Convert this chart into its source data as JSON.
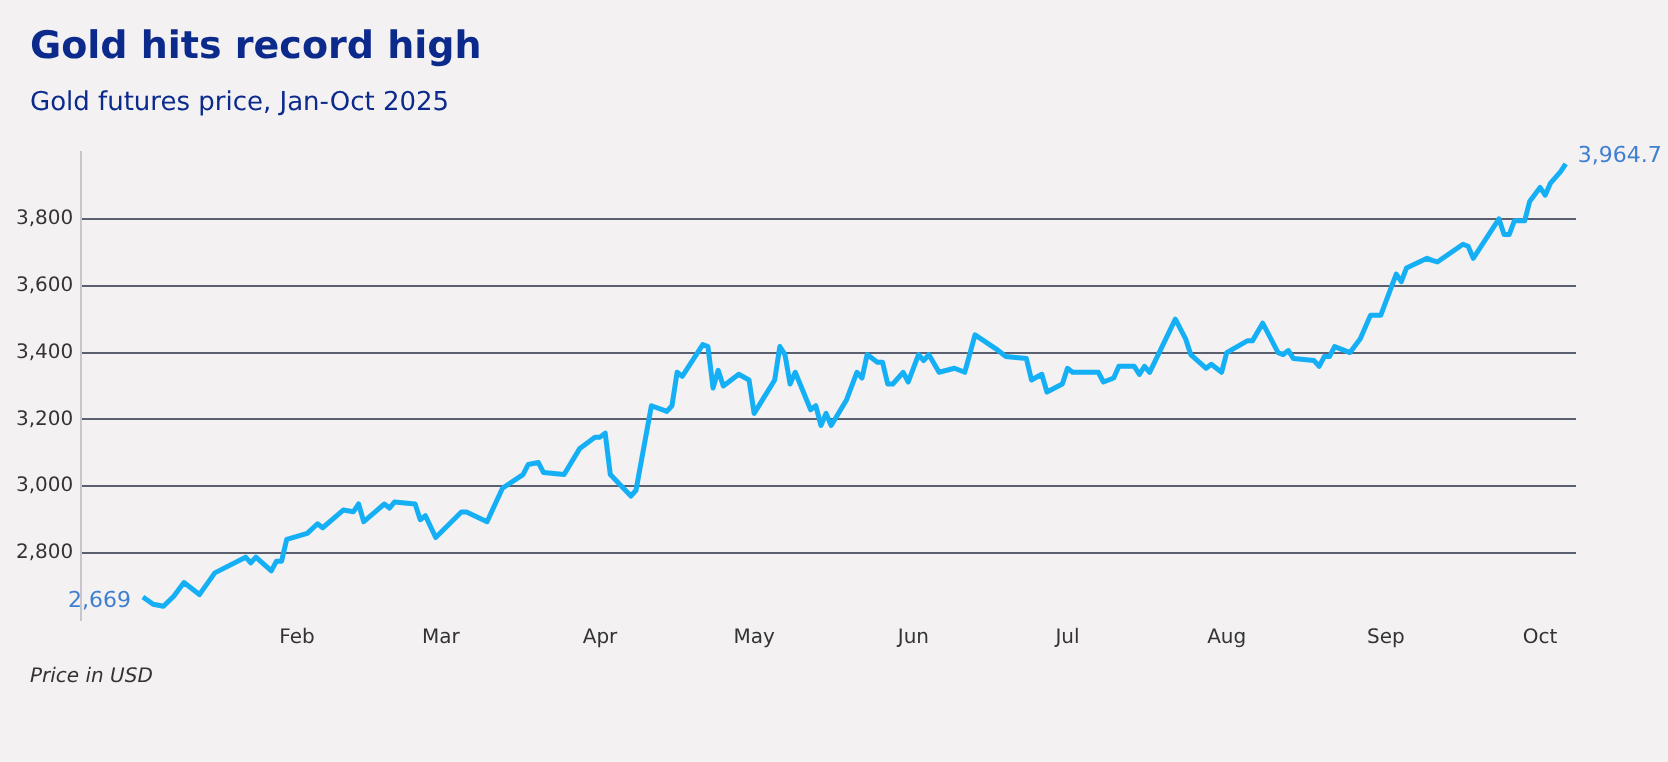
{
  "chart_data": {
    "type": "line",
    "title": "Gold hits record high",
    "subtitle": "Gold futures price, Jan-Oct 2025",
    "x": [
      "2025-01-02",
      "2025-01-04",
      "2025-01-06",
      "2025-01-08",
      "2025-01-10",
      "2025-01-13",
      "2025-01-16",
      "2025-01-22",
      "2025-01-23",
      "2025-01-24",
      "2025-01-27",
      "2025-01-28",
      "2025-01-29",
      "2025-01-30",
      "2025-02-03",
      "2025-02-05",
      "2025-02-06",
      "2025-02-10",
      "2025-02-12",
      "2025-02-13",
      "2025-02-14",
      "2025-02-18",
      "2025-02-19",
      "2025-02-20",
      "2025-02-24",
      "2025-02-25",
      "2025-02-26",
      "2025-02-28",
      "2025-03-05",
      "2025-03-06",
      "2025-03-10",
      "2025-03-13",
      "2025-03-17",
      "2025-03-18",
      "2025-03-20",
      "2025-03-21",
      "2025-03-25",
      "2025-03-28",
      "2025-03-31",
      "2025-04-01",
      "2025-04-02",
      "2025-04-03",
      "2025-04-07",
      "2025-04-08",
      "2025-04-11",
      "2025-04-14",
      "2025-04-15",
      "2025-04-16",
      "2025-04-17",
      "2025-04-21",
      "2025-04-22",
      "2025-04-23",
      "2025-04-24",
      "2025-04-25",
      "2025-04-28",
      "2025-04-30",
      "2025-05-01",
      "2025-05-05",
      "2025-05-06",
      "2025-05-07",
      "2025-05-08",
      "2025-05-09",
      "2025-05-12",
      "2025-05-13",
      "2025-05-14",
      "2025-05-15",
      "2025-05-16",
      "2025-05-19",
      "2025-05-21",
      "2025-05-22",
      "2025-05-23",
      "2025-05-25",
      "2025-05-26",
      "2025-05-27",
      "2025-05-28",
      "2025-05-30",
      "2025-05-31",
      "2025-06-02",
      "2025-06-03",
      "2025-06-04",
      "2025-06-06",
      "2025-06-09",
      "2025-06-11",
      "2025-06-13",
      "2025-06-17",
      "2025-06-19",
      "2025-06-23",
      "2025-06-24",
      "2025-06-26",
      "2025-06-27",
      "2025-06-30",
      "2025-07-01",
      "2025-07-02",
      "2025-07-07",
      "2025-07-08",
      "2025-07-10",
      "2025-07-11",
      "2025-07-14",
      "2025-07-15",
      "2025-07-16",
      "2025-07-17",
      "2025-07-22",
      "2025-07-24",
      "2025-07-25",
      "2025-07-28",
      "2025-07-29",
      "2025-07-31",
      "2025-08-01",
      "2025-08-05",
      "2025-08-06",
      "2025-08-08",
      "2025-08-11",
      "2025-08-12",
      "2025-08-13",
      "2025-08-14",
      "2025-08-18",
      "2025-08-19",
      "2025-08-20",
      "2025-08-21",
      "2025-08-22",
      "2025-08-25",
      "2025-08-27",
      "2025-08-29",
      "2025-08-31",
      "2025-09-03",
      "2025-09-04",
      "2025-09-05",
      "2025-09-09",
      "2025-09-10",
      "2025-09-11",
      "2025-09-16",
      "2025-09-17",
      "2025-09-18",
      "2025-09-23",
      "2025-09-24",
      "2025-09-25",
      "2025-09-26",
      "2025-09-28",
      "2025-09-29",
      "2025-10-01",
      "2025-10-02",
      "2025-10-03",
      "2025-10-05",
      "2025-10-06"
    ],
    "series": [
      {
        "color": "#14aff5",
        "values": [
          2669,
          2647,
          2641,
          2671,
          2712,
          2676,
          2741,
          2788,
          2771,
          2788,
          2747,
          2776,
          2776,
          2841,
          2859,
          2888,
          2876,
          2929,
          2924,
          2947,
          2894,
          2947,
          2935,
          2953,
          2947,
          2900,
          2912,
          2847,
          2923,
          2923,
          2894,
          2994,
          3035,
          3065,
          3071,
          3041,
          3035,
          3112,
          3147,
          3147,
          3159,
          3035,
          2971,
          2988,
          3241,
          3224,
          3241,
          3341,
          3329,
          3424,
          3418,
          3294,
          3347,
          3300,
          3335,
          3318,
          3218,
          3318,
          3418,
          3394,
          3306,
          3341,
          3229,
          3241,
          3182,
          3218,
          3182,
          3259,
          3341,
          3324,
          3394,
          3371,
          3371,
          3306,
          3306,
          3341,
          3312,
          3394,
          3376,
          3394,
          3341,
          3353,
          3341,
          3453,
          3412,
          3388,
          3382,
          3318,
          3335,
          3282,
          3306,
          3353,
          3341,
          3341,
          3312,
          3324,
          3359,
          3359,
          3335,
          3359,
          3341,
          3500,
          3441,
          3394,
          3353,
          3365,
          3341,
          3400,
          3435,
          3435,
          3488,
          3400,
          3394,
          3406,
          3382,
          3376,
          3359,
          3388,
          3388,
          3418,
          3400,
          3441,
          3512,
          3512,
          3635,
          3612,
          3653,
          3682,
          3676,
          3671,
          3724,
          3718,
          3682,
          3800,
          3753,
          3753,
          3794,
          3794,
          3853,
          3894,
          3871,
          3906,
          3941,
          3964.7
        ]
      }
    ],
    "xlim": [
      "2024-12-21",
      "2025-10-08"
    ],
    "xticks": [
      {
        "value": "2025-02-01",
        "label": "Feb"
      },
      {
        "value": "2025-03-01",
        "label": "Mar"
      },
      {
        "value": "2025-04-01",
        "label": "Apr"
      },
      {
        "value": "2025-05-01",
        "label": "May"
      },
      {
        "value": "2025-06-01",
        "label": "Jun"
      },
      {
        "value": "2025-07-01",
        "label": "Jul"
      },
      {
        "value": "2025-08-01",
        "label": "Aug"
      },
      {
        "value": "2025-09-01",
        "label": "Sep"
      },
      {
        "value": "2025-10-01",
        "label": "Oct"
      }
    ],
    "ylim": [
      2600,
      4000
    ],
    "yticks": [
      {
        "value": 2800,
        "label": "2,800"
      },
      {
        "value": 3000,
        "label": "3,000"
      },
      {
        "value": 3200,
        "label": "3,200"
      },
      {
        "value": 3400,
        "label": "3,400"
      },
      {
        "value": 3600,
        "label": "3,600"
      },
      {
        "value": 3800,
        "label": "3,800"
      }
    ],
    "grid": "y",
    "legend": false,
    "marker": "none",
    "line_style": "solid",
    "annotations": [
      {
        "text": "2,669",
        "x": "2025-01-02",
        "y": 2669
      },
      {
        "text": "3,964.7",
        "x": "2025-10-06",
        "y": 3964.7
      },
      "Price in USD"
    ]
  }
}
